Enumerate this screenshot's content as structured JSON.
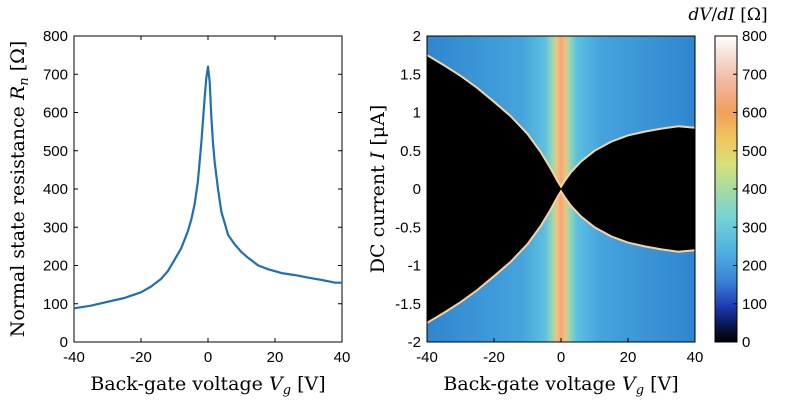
{
  "chart_data": [
    {
      "type": "line",
      "xlabel": "Back-gate voltage V_g [V]",
      "ylabel": "Normal state resistance R_n [Ω]",
      "xlim": [
        -40,
        40
      ],
      "ylim": [
        0,
        800
      ],
      "x_ticks": [
        "-40",
        "-20",
        "0",
        "20",
        "40"
      ],
      "y_ticks": [
        "0",
        "100",
        "200",
        "300",
        "400",
        "500",
        "600",
        "700",
        "800"
      ],
      "color": "#1f6fb2",
      "series": [
        {
          "x": [
            -40,
            -35,
            -30,
            -25,
            -20,
            -17,
            -14,
            -12,
            -10,
            -8,
            -6,
            -5,
            -4,
            -3,
            -2,
            -1.5,
            -1,
            -0.5,
            0,
            0.5,
            1,
            1.5,
            2,
            3,
            4,
            5,
            6,
            8,
            10,
            12,
            15,
            18,
            22,
            26,
            30,
            34,
            38,
            40
          ],
          "y": [
            88,
            95,
            105,
            115,
            130,
            145,
            165,
            185,
            215,
            245,
            290,
            320,
            360,
            420,
            520,
            580,
            640,
            690,
            720,
            680,
            590,
            520,
            470,
            400,
            340,
            310,
            280,
            255,
            235,
            220,
            200,
            190,
            180,
            175,
            168,
            162,
            155,
            155
          ]
        }
      ]
    },
    {
      "type": "heatmap",
      "xlabel": "Back-gate voltage V_g [V]",
      "ylabel": "DC current I [μA]",
      "xlim": [
        -40,
        40
      ],
      "ylim": [
        -2,
        2
      ],
      "x_ticks": [
        "-40",
        "-20",
        "0",
        "20",
        "40"
      ],
      "y_ticks": [
        "-2",
        "-1.5",
        "-1",
        "-0.5",
        "0",
        "0.5",
        "1",
        "1.5",
        "2"
      ],
      "colorbar": {
        "label": "dV/dI [Ω]",
        "range": [
          0,
          800
        ],
        "ticks": [
          "0",
          "100",
          "200",
          "300",
          "400",
          "500",
          "600",
          "700",
          "800"
        ]
      },
      "critical_current_envelope": {
        "vg": [
          -40,
          -35,
          -30,
          -25,
          -20,
          -15,
          -10,
          -6,
          -3,
          -1,
          0,
          1,
          3,
          6,
          10,
          15,
          20,
          25,
          30,
          35,
          40
        ],
        "ic": [
          1.75,
          1.62,
          1.48,
          1.32,
          1.14,
          0.95,
          0.72,
          0.48,
          0.26,
          0.1,
          0.03,
          0.1,
          0.22,
          0.36,
          0.5,
          0.62,
          0.7,
          0.75,
          0.79,
          0.82,
          0.8
        ]
      }
    }
  ]
}
